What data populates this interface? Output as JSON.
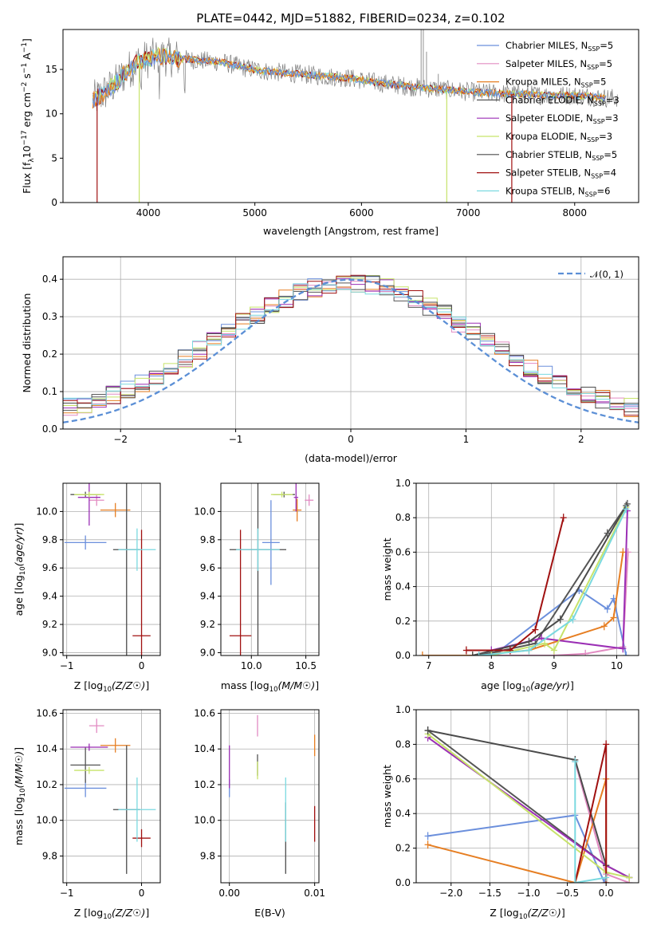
{
  "colors": {
    "Chabrier MILES": "#6b8fdc",
    "Salpeter MILES": "#e28bc2",
    "Kroupa MILES": "#e67e22",
    "Chabrier ELODIE": "#555555",
    "Salpeter ELODIE": "#9b2fb5",
    "Kroupa ELODIE": "#c7e36a",
    "Chabrier STELIB": "#4b4b4b",
    "Salpeter STELIB": "#a01010",
    "Kroupa STELIB": "#7ad9e0"
  },
  "chart_data": [
    {
      "type": "line",
      "id": "spectrum",
      "title": "PLATE=0442, MJD=51882, FIBERID=0234, z=0.102",
      "xlabel": "wavelength [Angstrom, rest frame]",
      "ylabel": "Flux [f",
      "ylabel_sub": "λ",
      "ylabel_mid": "10",
      "ylabel_sup1": "−17",
      "ylabel_rest": " erg cm",
      "ylabel_sup2": "−2",
      "ylabel_rest2": " s",
      "ylabel_sup3": "−1",
      "ylabel_rest3": " A",
      "ylabel_sup4": "−1",
      "ylabel_end": "]",
      "xlim": [
        3200,
        8600
      ],
      "ylim": [
        0,
        19.5
      ],
      "xticks": [
        "4000",
        "5000",
        "6000",
        "7000",
        "8000"
      ],
      "yticks": [
        "0",
        "5",
        "10",
        "15"
      ],
      "legend": [
        {
          "name": "Chabrier MILES, N",
          "sub": "SSP",
          "tail": "=5"
        },
        {
          "name": "Salpeter MILES, N",
          "sub": "SSP",
          "tail": "=5"
        },
        {
          "name": "Kroupa MILES, N",
          "sub": "SSP",
          "tail": "=5"
        },
        {
          "name": "Chabrier ELODIE, N",
          "sub": "SSP",
          "tail": "=3"
        },
        {
          "name": "Salpeter ELODIE, N",
          "sub": "SSP",
          "tail": "=3"
        },
        {
          "name": "Kroupa ELODIE, N",
          "sub": "SSP",
          "tail": "=3"
        },
        {
          "name": "Chabrier STELIB, N",
          "sub": "SSP",
          "tail": "=5"
        },
        {
          "name": "Salpeter STELIB, N",
          "sub": "SSP",
          "tail": "=4"
        },
        {
          "name": "Kroupa STELIB, N",
          "sub": "SSP",
          "tail": "=6"
        }
      ],
      "continuum": [
        [
          3480,
          11.5
        ],
        [
          3600,
          12.5
        ],
        [
          3700,
          13.5
        ],
        [
          3800,
          14.8
        ],
        [
          3900,
          15.8
        ],
        [
          4000,
          16.2
        ],
        [
          4100,
          16.5
        ],
        [
          4300,
          16.2
        ],
        [
          4500,
          16.0
        ],
        [
          4700,
          15.8
        ],
        [
          4900,
          15.2
        ],
        [
          5100,
          14.8
        ],
        [
          5300,
          14.6
        ],
        [
          5500,
          14.4
        ],
        [
          5700,
          14.2
        ],
        [
          5900,
          14.0
        ],
        [
          6100,
          13.6
        ],
        [
          6300,
          13.3
        ],
        [
          6500,
          13.0
        ],
        [
          6700,
          12.8
        ],
        [
          6900,
          12.6
        ],
        [
          7100,
          12.4
        ],
        [
          7300,
          12.3
        ],
        [
          7500,
          12.2
        ],
        [
          7700,
          12.1
        ],
        [
          7900,
          12.1
        ],
        [
          8100,
          12.0
        ],
        [
          8300,
          11.8
        ],
        [
          8400,
          11.8
        ]
      ]
    },
    {
      "type": "histogram",
      "id": "residuals",
      "xlabel": "(data-model)/error",
      "ylabel": "Normed distribution",
      "xlim": [
        -2.5,
        2.5
      ],
      "ylim": [
        0,
        0.46
      ],
      "xticks": [
        "−2",
        "−1",
        "0",
        "1",
        "2"
      ],
      "yticks": [
        "0.0",
        "0.1",
        "0.2",
        "0.3",
        "0.4"
      ],
      "legend": "𝒩(0, 1)",
      "bins": 40
    },
    {
      "type": "scatter",
      "id": "age-vs-Z",
      "xlabel": "Z [log",
      "ylabel": "age  [log",
      "xlim": [
        -1.05,
        0.25
      ],
      "ylim": [
        8.98,
        10.2
      ],
      "xticks": [
        "−1",
        "0"
      ],
      "yticks": [
        "9.0",
        "9.2",
        "9.4",
        "9.6",
        "9.8",
        "10.0"
      ],
      "points": [
        {
          "series": "Chabrier MILES",
          "x": -0.75,
          "y": 9.78,
          "xerr": 0.28,
          "yerr": 0.05
        },
        {
          "series": "Salpeter MILES",
          "x": -0.6,
          "y": 10.08,
          "xerr": 0.1,
          "yerr": 0.04
        },
        {
          "series": "Kroupa MILES",
          "x": -0.35,
          "y": 10.01,
          "xerr": 0.2,
          "yerr": 0.05
        },
        {
          "series": "Chabrier ELODIE",
          "x": -0.75,
          "y": 10.12,
          "xerr": 0.2,
          "yerr": 0.02
        },
        {
          "series": "Salpeter ELODIE",
          "x": -0.7,
          "y": 10.1,
          "xerr": 0.15,
          "yerr": 0.2
        },
        {
          "series": "Kroupa ELODIE",
          "x": -0.7,
          "y": 10.12,
          "xerr": 0.2,
          "yerr": 0.02
        },
        {
          "series": "Chabrier STELIB",
          "x": -0.2,
          "y": 9.73,
          "xerr": 0.18,
          "yerr": 0.8
        },
        {
          "series": "Salpeter STELIB",
          "x": 0.0,
          "y": 9.12,
          "xerr": 0.12,
          "yerr": 0.75
        },
        {
          "series": "Kroupa STELIB",
          "x": -0.06,
          "y": 9.73,
          "xerr": 0.25,
          "yerr": 0.15
        }
      ]
    },
    {
      "type": "scatter",
      "id": "age-vs-mass",
      "xlabel": "mass [log",
      "xlim": [
        9.72,
        10.62
      ],
      "ylim": [
        8.98,
        10.2
      ],
      "xticks": [
        "10.0",
        "10.5"
      ],
      "yticks": [
        "9.0",
        "9.2",
        "9.4",
        "9.6",
        "9.8",
        "10.0"
      ],
      "points": [
        {
          "series": "Chabrier MILES",
          "x": 10.18,
          "y": 9.78,
          "xerr": 0.08,
          "yerr": 0.3
        },
        {
          "series": "Salpeter MILES",
          "x": 10.53,
          "y": 10.08,
          "xerr": 0.04,
          "yerr": 0.04
        },
        {
          "series": "Kroupa MILES",
          "x": 10.42,
          "y": 10.01,
          "xerr": 0.04,
          "yerr": 0.08
        },
        {
          "series": "Chabrier ELODIE",
          "x": 10.3,
          "y": 10.12,
          "xerr": 0.1,
          "yerr": 0.02
        },
        {
          "series": "Salpeter ELODIE",
          "x": 10.41,
          "y": 10.1,
          "xerr": 0.02,
          "yerr": 0.1
        },
        {
          "series": "Kroupa ELODIE",
          "x": 10.28,
          "y": 10.12,
          "xerr": 0.1,
          "yerr": 0.02
        },
        {
          "series": "Chabrier STELIB",
          "x": 10.06,
          "y": 9.73,
          "xerr": 0.26,
          "yerr": 0.8
        },
        {
          "series": "Salpeter STELIB",
          "x": 9.9,
          "y": 9.12,
          "xerr": 0.1,
          "yerr": 0.75
        },
        {
          "series": "Kroupa STELIB",
          "x": 10.06,
          "y": 9.73,
          "xerr": 0.2,
          "yerr": 0.15
        }
      ]
    },
    {
      "type": "line",
      "id": "massweight-vs-age",
      "xlabel": "age  [log",
      "ylabel": "mass weight",
      "xlim": [
        6.8,
        10.35
      ],
      "ylim": [
        0,
        1.0
      ],
      "xticks": [
        "7",
        "8",
        "9",
        "10"
      ],
      "yticks": [
        "0.0",
        "0.2",
        "0.4",
        "0.6",
        "0.8",
        "1.0"
      ],
      "series": [
        {
          "name": "Chabrier MILES",
          "x": [
            7.7,
            8.1,
            9.4,
            9.85,
            9.95,
            10.15
          ],
          "y": [
            0.0,
            0.02,
            0.38,
            0.27,
            0.33,
            0.0
          ]
        },
        {
          "name": "Salpeter MILES",
          "x": [
            7.7,
            9.0,
            9.5,
            10.1,
            10.18
          ],
          "y": [
            0.0,
            0.0,
            0.01,
            0.05,
            0.6
          ]
        },
        {
          "name": "Kroupa MILES",
          "x": [
            6.9,
            7.7,
            8.6,
            9.8,
            9.95,
            10.1
          ],
          "y": [
            0.0,
            0.0,
            0.03,
            0.17,
            0.22,
            0.6
          ]
        },
        {
          "name": "Chabrier ELODIE",
          "x": [
            7.8,
            8.7,
            9.85,
            10.17
          ],
          "y": [
            0.0,
            0.07,
            0.71,
            0.88
          ]
        },
        {
          "name": "Salpeter ELODIE",
          "x": [
            8.0,
            8.8,
            10.1,
            10.17
          ],
          "y": [
            0.03,
            0.1,
            0.04,
            0.84
          ]
        },
        {
          "name": "Kroupa ELODIE",
          "x": [
            8.0,
            8.85,
            9.0,
            10.15
          ],
          "y": [
            0.0,
            0.07,
            0.03,
            0.86
          ]
        },
        {
          "name": "Chabrier STELIB",
          "x": [
            7.7,
            8.6,
            9.1,
            10.15
          ],
          "y": [
            0.0,
            0.08,
            0.21,
            0.87
          ]
        },
        {
          "name": "Salpeter STELIB",
          "x": [
            7.6,
            8.3,
            8.7,
            9.15
          ],
          "y": [
            0.03,
            0.03,
            0.15,
            0.8
          ]
        },
        {
          "name": "Kroupa STELIB",
          "x": [
            7.8,
            8.6,
            9.3,
            10.15
          ],
          "y": [
            0.0,
            0.03,
            0.21,
            0.85
          ]
        }
      ]
    },
    {
      "type": "scatter",
      "id": "mass-vs-Z",
      "xlabel": "Z [log",
      "ylabel": "mass [log",
      "xlim": [
        -1.05,
        0.25
      ],
      "ylim": [
        9.65,
        10.62
      ],
      "xticks": [
        "−1",
        "0"
      ],
      "yticks": [
        "9.8",
        "10.0",
        "10.2",
        "10.4",
        "10.6"
      ],
      "points": [
        {
          "series": "Chabrier MILES",
          "x": -0.75,
          "y": 10.18,
          "xerr": 0.28,
          "yerr": 0.05
        },
        {
          "series": "Salpeter MILES",
          "x": -0.6,
          "y": 10.53,
          "xerr": 0.1,
          "yerr": 0.04
        },
        {
          "series": "Kroupa MILES",
          "x": -0.35,
          "y": 10.42,
          "xerr": 0.2,
          "yerr": 0.04
        },
        {
          "series": "Chabrier ELODIE",
          "x": -0.75,
          "y": 10.31,
          "xerr": 0.2,
          "yerr": 0.1
        },
        {
          "series": "Salpeter ELODIE",
          "x": -0.7,
          "y": 10.41,
          "xerr": 0.25,
          "yerr": 0.02
        },
        {
          "series": "Kroupa ELODIE",
          "x": -0.7,
          "y": 10.28,
          "xerr": 0.2,
          "yerr": 0.02
        },
        {
          "series": "Chabrier STELIB",
          "x": -0.2,
          "y": 10.06,
          "xerr": 0.18,
          "yerr": 0.36
        },
        {
          "series": "Salpeter STELIB",
          "x": 0.0,
          "y": 9.9,
          "xerr": 0.12,
          "yerr": 0.05
        },
        {
          "series": "Kroupa STELIB",
          "x": -0.06,
          "y": 10.06,
          "xerr": 0.25,
          "yerr": 0.18
        }
      ]
    },
    {
      "type": "scatter",
      "id": "mass-vs-EBV",
      "xlabel": "E(B-V)",
      "xlim": [
        -0.001,
        0.0105
      ],
      "ylim": [
        9.65,
        10.62
      ],
      "xticks": [
        "0.00",
        "0.01"
      ],
      "yticks": [
        "9.8",
        "10.0",
        "10.2",
        "10.4",
        "10.6"
      ],
      "points": [
        {
          "series": "Chabrier MILES",
          "x": 0.0,
          "y": 10.18,
          "xerr": 0,
          "yerr": 0.05
        },
        {
          "series": "Salpeter MILES",
          "x": 0.0033,
          "y": 10.53,
          "xerr": 0,
          "yerr": 0.06
        },
        {
          "series": "Kroupa MILES",
          "x": 0.01,
          "y": 10.42,
          "xerr": 0,
          "yerr": 0.06
        },
        {
          "series": "Chabrier ELODIE",
          "x": 0.0033,
          "y": 10.31,
          "xerr": 0,
          "yerr": 0.06
        },
        {
          "series": "Salpeter ELODIE",
          "x": 0.0,
          "y": 10.3,
          "xerr": 0,
          "yerr": 0.12
        },
        {
          "series": "Kroupa ELODIE",
          "x": 0.0033,
          "y": 10.28,
          "xerr": 0,
          "yerr": 0.05
        },
        {
          "series": "Chabrier STELIB",
          "x": 0.0066,
          "y": 9.9,
          "xerr": 0,
          "yerr": 0.2
        },
        {
          "series": "Salpeter STELIB",
          "x": 0.01,
          "y": 9.98,
          "xerr": 0,
          "yerr": 0.1
        },
        {
          "series": "Kroupa STELIB",
          "x": 0.0066,
          "y": 10.06,
          "xerr": 0,
          "yerr": 0.18
        }
      ]
    },
    {
      "type": "line",
      "id": "massweight-vs-Z",
      "xlabel": "Z [log",
      "ylabel": "mass weight",
      "xlim": [
        -2.45,
        0.42
      ],
      "ylim": [
        0,
        1.0
      ],
      "xticks": [
        "−2.0",
        "−1.5",
        "−1.0",
        "−0.5",
        "0.0"
      ],
      "yticks": [
        "0.0",
        "0.2",
        "0.4",
        "0.6",
        "0.8",
        "1.0"
      ],
      "series": [
        {
          "name": "Chabrier MILES",
          "x": [
            -2.3,
            -0.4,
            -0.02
          ],
          "y": [
            0.27,
            0.39,
            0.0
          ]
        },
        {
          "name": "Salpeter MILES",
          "x": [
            -0.4,
            0.0,
            0.3
          ],
          "y": [
            0.7,
            0.05,
            0.0
          ]
        },
        {
          "name": "Kroupa MILES",
          "x": [
            -2.3,
            -0.4,
            0.0,
            0.0
          ],
          "y": [
            0.22,
            0.0,
            0.6,
            0.0
          ]
        },
        {
          "name": "Chabrier ELODIE",
          "x": [
            -2.3,
            0.0,
            0.3
          ],
          "y": [
            0.88,
            0.1,
            0.03
          ]
        },
        {
          "name": "Salpeter ELODIE",
          "x": [
            -2.3,
            0.0,
            0.3
          ],
          "y": [
            0.84,
            0.1,
            0.03
          ]
        },
        {
          "name": "Kroupa ELODIE",
          "x": [
            -2.3,
            0.0,
            0.3
          ],
          "y": [
            0.86,
            0.06,
            0.03
          ]
        },
        {
          "name": "Chabrier STELIB",
          "x": [
            -2.3,
            -0.4,
            0.0
          ],
          "y": [
            0.88,
            0.71,
            0.1
          ]
        },
        {
          "name": "Salpeter STELIB",
          "x": [
            -0.4,
            0.0,
            0.0
          ],
          "y": [
            0.0,
            0.8,
            0.0
          ]
        },
        {
          "name": "Kroupa STELIB",
          "x": [
            -0.4,
            -0.4,
            0.0
          ],
          "y": [
            0.7,
            0.0,
            0.03
          ]
        }
      ]
    }
  ]
}
